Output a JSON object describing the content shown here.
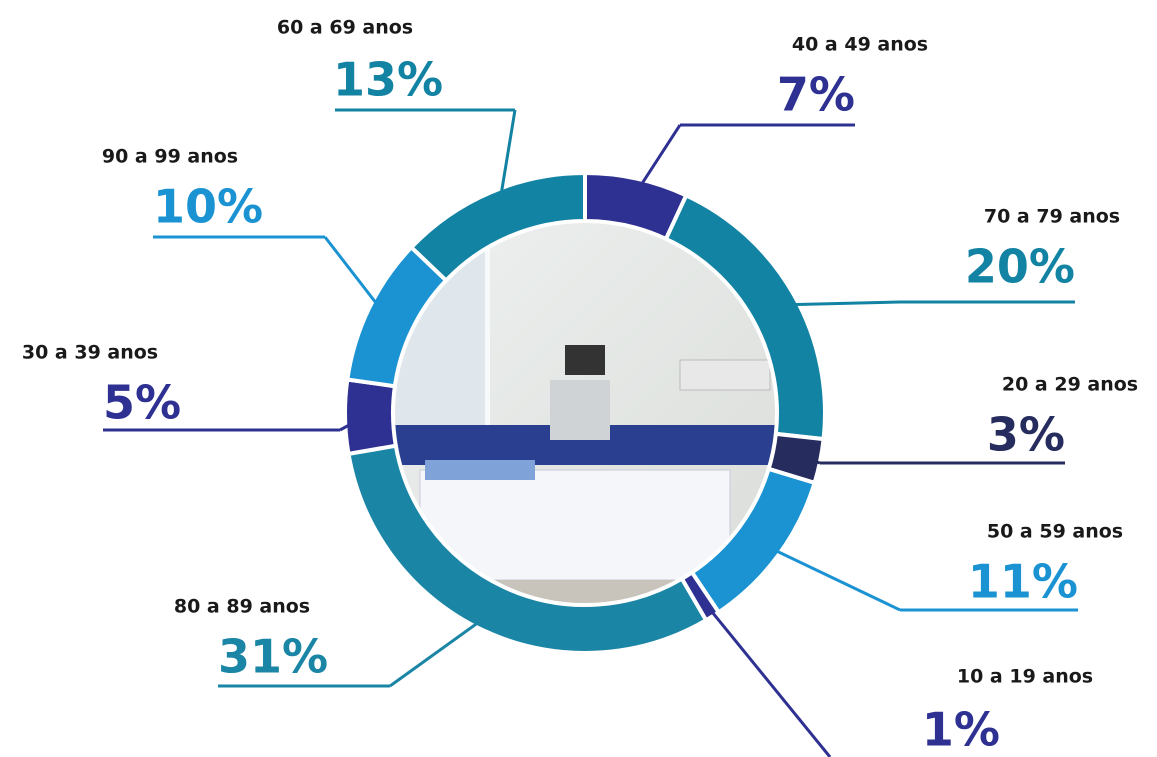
{
  "chart_data": {
    "type": "donut",
    "categories": [
      "40 a 49 anos",
      "70 a 79 anos",
      "20 a 29 anos",
      "50 a 59 anos",
      "10 a 19 anos",
      "80 a 89 anos",
      "30 a 39 anos",
      "90 a 99 anos",
      "60 a 69 anos"
    ],
    "values": [
      7,
      20,
      3,
      11,
      1,
      31,
      5,
      10,
      13
    ],
    "value_labels": [
      "7%",
      "20%",
      "3%",
      "11%",
      "1%",
      "31%",
      "5%",
      "10%",
      "13%"
    ],
    "colors": [
      "#2e3192",
      "#1283a3",
      "#262d5e",
      "#1b93d3",
      "#2e3192",
      "#1a85a5",
      "#2e3192",
      "#1b93d3",
      "#1283a3"
    ]
  }
}
